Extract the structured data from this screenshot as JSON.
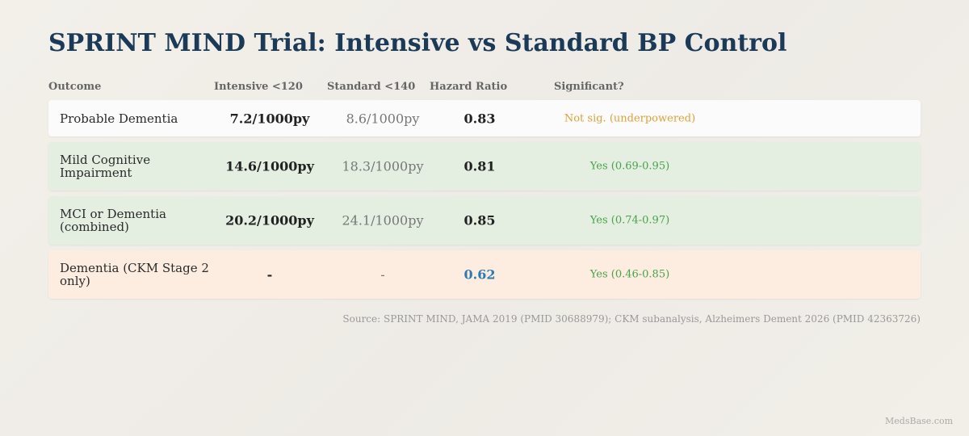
{
  "title": "SPRINT MIND Trial: Intensive vs Standard BP Control",
  "columns": {
    "outcome": "Outcome",
    "intensive": "Intensive <120",
    "standard": "Standard <140",
    "hazard_ratio": "Hazard Ratio",
    "significant": "Significant?"
  },
  "rows": [
    {
      "outcome": "Probable Dementia",
      "intensive": "7.2/1000py",
      "standard": "8.6/1000py",
      "hazard_ratio": "0.83",
      "significant": "Not sig. (underpowered)",
      "status": "not-significant",
      "background": "#fbfbfc"
    },
    {
      "outcome": "Mild Cognitive Impairment",
      "intensive": "14.6/1000py",
      "standard": "18.3/1000py",
      "hazard_ratio": "0.81",
      "significant": "Yes (0.69-0.95)",
      "status": "significant",
      "background": "#e4efe1"
    },
    {
      "outcome": "MCI or Dementia (combined)",
      "intensive": "20.2/1000py",
      "standard": "24.1/1000py",
      "hazard_ratio": "0.85",
      "significant": "Yes (0.74-0.97)",
      "status": "significant",
      "background": "#e4efe1"
    },
    {
      "outcome": "Dementia (CKM Stage 2 only)",
      "intensive": "-",
      "standard": "-",
      "hazard_ratio": "0.62",
      "significant": "Yes (0.46-0.85)",
      "status": "significant",
      "background": "#fcede0",
      "hazard_ratio_highlight": true
    }
  ],
  "source": "Source: SPRINT MIND, JAMA 2019 (PMID 30688979); CKM subanalysis, Alzheimers Dement 2026 (PMID 42363726)",
  "brand": "MedsBase.com",
  "colors": {
    "title": "#1b3a57",
    "significant": "#4aa14a",
    "not_significant": "#d9a33a",
    "highlight_hr": "#2f7bb0"
  }
}
